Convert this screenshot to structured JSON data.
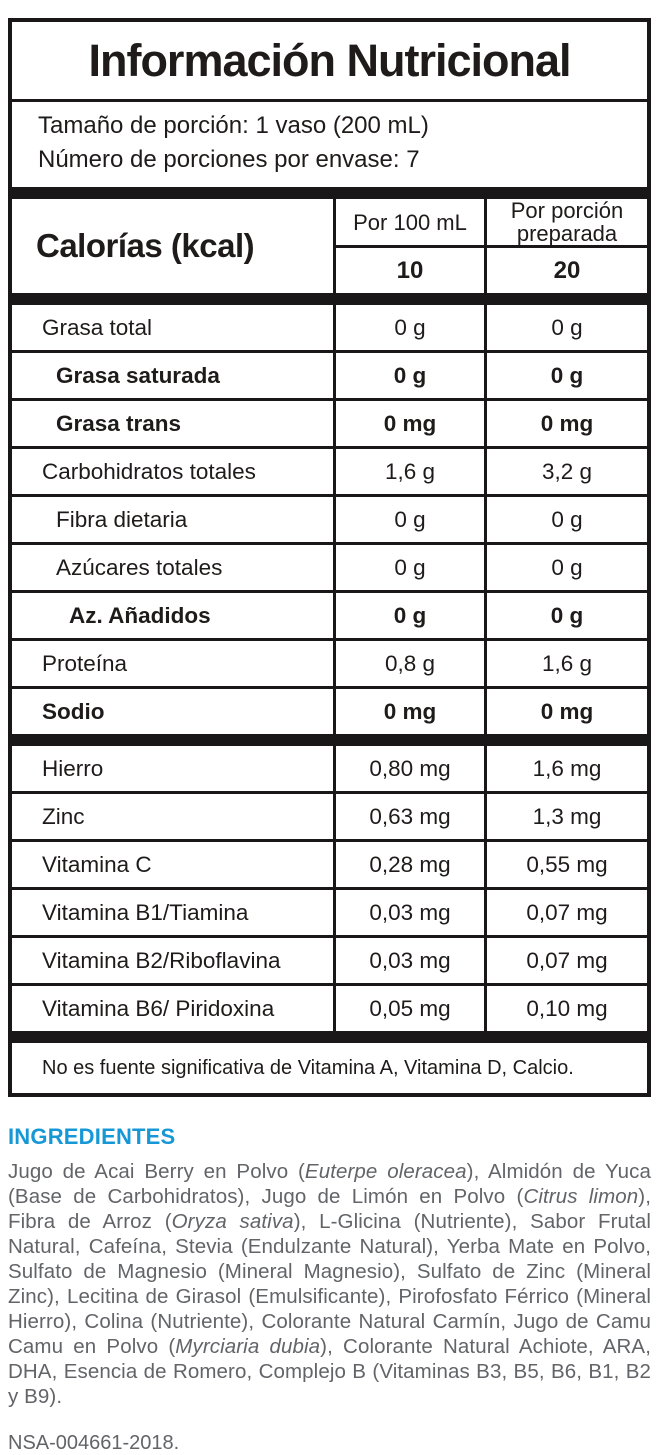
{
  "label": {
    "title": "Información Nutricional",
    "serving": {
      "line1": "Tamaño de porción: 1 vaso (200 mL)",
      "line2": "Número de porciones por envase: 7"
    },
    "columns": {
      "per_100": "Por 100 mL",
      "per_serving": "Por porción preparada"
    },
    "calories": {
      "name": "Calorías (kcal)",
      "per100": "10",
      "per_serving": "20"
    },
    "nutrients": [
      {
        "name": "Grasa total",
        "per100": "0 g",
        "serving": "0 g",
        "bold": false,
        "indent": 0
      },
      {
        "name": "Grasa saturada",
        "per100": "0 g",
        "serving": "0 g",
        "bold": true,
        "indent": 1
      },
      {
        "name": "Grasa trans",
        "per100": "0 mg",
        "serving": "0 mg",
        "bold": true,
        "indent": 1
      },
      {
        "name": "Carbohidratos totales",
        "per100": "1,6 g",
        "serving": "3,2 g",
        "bold": false,
        "indent": 0
      },
      {
        "name": "Fibra dietaria",
        "per100": "0 g",
        "serving": "0 g",
        "bold": false,
        "indent": 1
      },
      {
        "name": "Azúcares totales",
        "per100": "0 g",
        "serving": "0 g",
        "bold": false,
        "indent": 1
      },
      {
        "name": "Az. Añadidos",
        "per100": "0 g",
        "serving": "0 g",
        "bold": true,
        "indent": 2
      },
      {
        "name": "Proteína",
        "per100": "0,8 g",
        "serving": "1,6 g",
        "bold": false,
        "indent": 0
      },
      {
        "name": "Sodio",
        "per100": "0 mg",
        "serving": "0 mg",
        "bold": true,
        "indent": 0
      }
    ],
    "micronutrients": [
      {
        "name": "Hierro",
        "per100": "0,80 mg",
        "serving": "1,6 mg",
        "bold": false,
        "indent": 0
      },
      {
        "name": "Zinc",
        "per100": "0,63 mg",
        "serving": "1,3 mg",
        "bold": false,
        "indent": 0
      },
      {
        "name": "Vitamina C",
        "per100": "0,28 mg",
        "serving": "0,55 mg",
        "bold": false,
        "indent": 0
      },
      {
        "name": "Vitamina B1/Tiamina",
        "per100": "0,03 mg",
        "serving": "0,07 mg",
        "bold": false,
        "indent": 0
      },
      {
        "name": "Vitamina B2/Riboflavina",
        "per100": "0,03 mg",
        "serving": "0,07 mg",
        "bold": false,
        "indent": 0
      },
      {
        "name": "Vitamina B6/ Piridoxina",
        "per100": "0,05 mg",
        "serving": "0,10 mg",
        "bold": false,
        "indent": 0
      }
    ],
    "footnote": "No es fuente significativa de Vitamina A, Vitamina D, Calcio."
  },
  "ingredients": {
    "heading": "INGREDIENTES",
    "heading_color": "#1798d6",
    "text_color": "#626468",
    "segments": [
      {
        "text": "Jugo de Acai Berry en Polvo (",
        "italic": false
      },
      {
        "text": "Euterpe oleracea",
        "italic": true
      },
      {
        "text": "), Almidón de Yuca (Base de Carbohidratos), Jugo de Limón en Polvo (",
        "italic": false
      },
      {
        "text": "Citrus limon",
        "italic": true
      },
      {
        "text": "), Fibra de Arroz (",
        "italic": false
      },
      {
        "text": "Oryza sativa",
        "italic": true
      },
      {
        "text": "), L-Glicina (Nutriente), Sabor Frutal Natural, Cafeína, Stevia (Endulzante Natural), Yerba Mate en Polvo, Sulfato de Magnesio (Mineral Magnesio), Sulfato de Zinc (Mineral Zinc), Lecitina de Girasol (Emulsificante), Pirofosfato Férrico (Mineral Hierro), Colina (Nutriente), Colorante Natural Carmín, Jugo de Camu Camu en Polvo (",
        "italic": false
      },
      {
        "text": "Myrciaria dubia",
        "italic": true
      },
      {
        "text": "), Colorante Natural Achiote, ARA, DHA, Esencia de Romero, Complejo B (Vitaminas B3, B5, B6, B1, B2 y B9).",
        "italic": false
      }
    ]
  },
  "registration": "NSA-004661-2018."
}
